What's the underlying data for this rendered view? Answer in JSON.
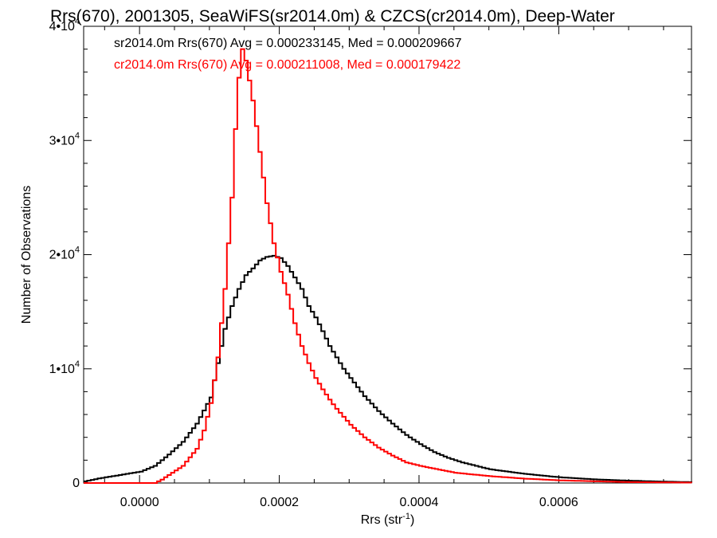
{
  "chart_data": {
    "type": "line",
    "title": "Rrs(670), 2001305, SeaWiFS(sr2014.0m) & CZCS(cr2014.0m), Deep-Water",
    "xlabel": "Rrs (str",
    "xlabel_sup": "-1",
    "xlabel_close": ")",
    "ylabel": "Number of Observations",
    "xlim": [
      -8e-05,
      0.00079
    ],
    "ylim": [
      0,
      40000
    ],
    "xticks": [
      {
        "value": 0.0,
        "label": "0.0000"
      },
      {
        "value": 0.0002,
        "label": "0.0002"
      },
      {
        "value": 0.0004,
        "label": "0.0004"
      },
      {
        "value": 0.0006,
        "label": "0.0006"
      }
    ],
    "yticks": [
      {
        "value": 0,
        "mant": "0",
        "exp": ""
      },
      {
        "value": 10000,
        "mant": "1•10",
        "exp": "4"
      },
      {
        "value": 20000,
        "mant": "2•10",
        "exp": "4"
      },
      {
        "value": 30000,
        "mant": "3•10",
        "exp": "4"
      },
      {
        "value": 40000,
        "mant": "4•10",
        "exp": "4"
      }
    ],
    "legend_placement": "top-left",
    "series": [
      {
        "name": "sr2014.0m Rrs(670) Avg = 0.000233145, Med = 0.000209667",
        "color": "#000000",
        "x": [
          -8e-05,
          -6e-05,
          -4e-05,
          -2e-05,
          0.0,
          2e-05,
          4e-05,
          6e-05,
          8e-05,
          0.0001,
          0.00011,
          0.00012,
          0.00013,
          0.00014,
          0.00015,
          0.00016,
          0.00017,
          0.00018,
          0.00019,
          0.0002,
          0.00021,
          0.00022,
          0.00023,
          0.00024,
          0.00025,
          0.00026,
          0.00027,
          0.00028,
          0.00029,
          0.0003,
          0.00032,
          0.00034,
          0.00036,
          0.00038,
          0.0004,
          0.00042,
          0.00044,
          0.00046,
          0.00048,
          0.0005,
          0.00055,
          0.0006,
          0.00065,
          0.0007,
          0.00075,
          0.00079
        ],
        "y": [
          150,
          400,
          600,
          800,
          1000,
          1500,
          2500,
          3600,
          5200,
          7500,
          10500,
          13500,
          15500,
          17000,
          18200,
          18800,
          19500,
          19800,
          19900,
          19700,
          19000,
          18000,
          17000,
          15500,
          14500,
          13300,
          12000,
          11000,
          10000,
          9200,
          7600,
          6300,
          5200,
          4200,
          3400,
          2700,
          2200,
          1800,
          1500,
          1200,
          800,
          500,
          320,
          200,
          120,
          70
        ]
      },
      {
        "name": "cr2014.0m Rrs(670) Avg = 0.000211008, Med = 0.000179422",
        "color": "#ff0000",
        "x": [
          -8e-05,
          2e-05,
          3e-05,
          4e-05,
          6e-05,
          8e-05,
          9e-05,
          0.0001,
          0.00011,
          0.00012,
          0.00013,
          0.000135,
          0.00014,
          0.000145,
          0.00015,
          0.00016,
          0.00017,
          0.00018,
          0.00019,
          0.0002,
          0.00021,
          0.00022,
          0.00023,
          0.00024,
          0.00025,
          0.00026,
          0.00027,
          0.00028,
          0.00029,
          0.0003,
          0.00032,
          0.00034,
          0.00036,
          0.00038,
          0.0004,
          0.00045,
          0.0005,
          0.00055,
          0.0006,
          0.00065,
          0.0007,
          0.00079
        ],
        "y": [
          0,
          0,
          300,
          700,
          1500,
          3000,
          4600,
          7000,
          11000,
          17000,
          25000,
          31000,
          35500,
          38000,
          37000,
          33500,
          29000,
          24500,
          21000,
          18500,
          16500,
          14000,
          12000,
          10500,
          9200,
          8200,
          7300,
          6500,
          5800,
          5100,
          4000,
          3100,
          2400,
          1800,
          1500,
          900,
          600,
          380,
          230,
          150,
          80,
          30
        ]
      }
    ]
  }
}
